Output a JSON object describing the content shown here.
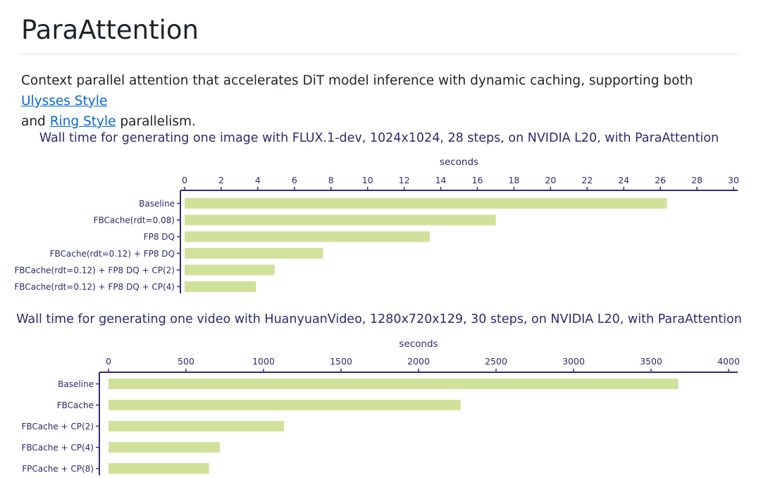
{
  "page": {
    "title": "ParaAttention",
    "intro_before": "Context parallel attention that accelerates DiT model inference with dynamic caching, supporting both ",
    "link_ulysses": "Ulysses Style",
    "intro_middle": "\nand ",
    "link_ring": "Ring Style",
    "intro_after": " parallelism."
  },
  "colors": {
    "bar": "#d0e29a",
    "axis": "#3d2a78",
    "title": "#2d2a70",
    "text": "#2d2a70"
  },
  "chart_data": [
    {
      "type": "bar",
      "orientation": "horizontal",
      "title": "Wall time for generating one image with FLUX.1-dev, 1024x1024, 28 steps, on NVIDIA L20, with ParaAttention",
      "xlabel": "seconds",
      "ylabel": "",
      "xlim": [
        0,
        30
      ],
      "ticks": [
        0,
        2,
        4,
        6,
        8,
        10,
        12,
        14,
        16,
        18,
        20,
        22,
        24,
        26,
        28,
        30
      ],
      "axis_position": "top",
      "grid": false,
      "categories": [
        "Baseline",
        "FBCache(rdt=0.08)",
        "FP8 DQ",
        "FBCache(rdt=0.12) + FP8 DQ",
        "FBCache(rdt=0.12) + FP8 DQ + CP(2)",
        "FBCache(rdt=0.12) + FP8 DQ + CP(4)"
      ],
      "values": [
        26.36,
        17.01,
        13.4,
        7.56,
        4.92,
        3.9
      ]
    },
    {
      "type": "bar",
      "orientation": "horizontal",
      "title": "Wall time for generating one video with HuanyuanVideo, 1280x720x129, 30 steps, on NVIDIA L20, with ParaAttention",
      "xlabel": "seconds",
      "ylabel": "",
      "xlim": [
        0,
        4000
      ],
      "ticks": [
        0,
        500,
        1000,
        1500,
        2000,
        2500,
        3000,
        3500,
        4000
      ],
      "axis_position": "top",
      "grid": false,
      "categories": [
        "Baseline",
        "FBCache",
        "FBCache + CP(2)",
        "FBCache + CP(4)",
        "FPCache + CP(8)"
      ],
      "values": [
        3675,
        2271,
        1132,
        718,
        649
      ]
    }
  ]
}
